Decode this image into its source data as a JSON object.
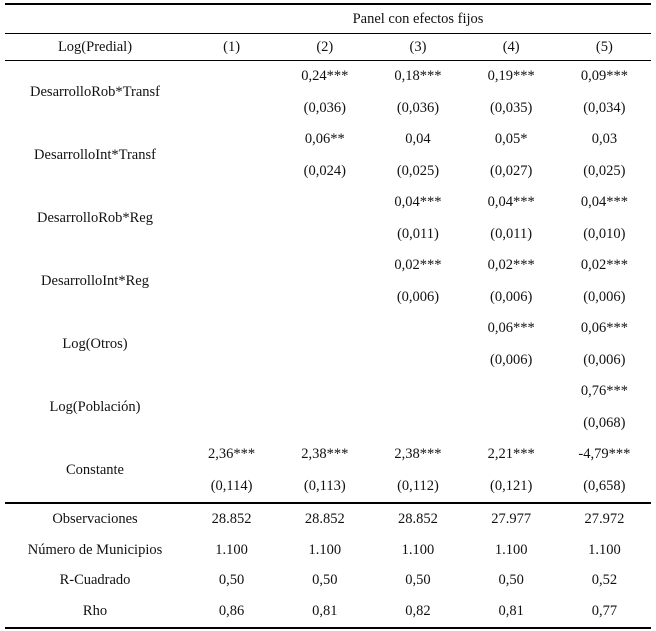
{
  "header": {
    "panel_title": "Panel con efectos fijos",
    "dep_var": "Log(Predial)",
    "columns": [
      "(1)",
      "(2)",
      "(3)",
      "(4)",
      "(5)"
    ]
  },
  "table": {
    "variables": [
      {
        "label": "DesarrolloRob*Transf",
        "coef": [
          "",
          "0,24***",
          "0,18***",
          "0,19***",
          "0,09***"
        ],
        "se": [
          "",
          "(0,036)",
          "(0,036)",
          "(0,035)",
          "(0,034)"
        ]
      },
      {
        "label": "DesarrolloInt*Transf",
        "coef": [
          "",
          "0,06**",
          "0,04",
          "0,05*",
          "0,03"
        ],
        "se": [
          "",
          "(0,024)",
          "(0,025)",
          "(0,027)",
          "(0,025)"
        ]
      },
      {
        "label": "DesarrolloRob*Reg",
        "coef": [
          "",
          "",
          "0,04***",
          "0,04***",
          "0,04***"
        ],
        "se": [
          "",
          "",
          "(0,011)",
          "(0,011)",
          "(0,010)"
        ]
      },
      {
        "label": "DesarrolloInt*Reg",
        "coef": [
          "",
          "",
          "0,02***",
          "0,02***",
          "0,02***"
        ],
        "se": [
          "",
          "",
          "(0,006)",
          "(0,006)",
          "(0,006)"
        ]
      },
      {
        "label": "Log(Otros)",
        "coef": [
          "",
          "",
          "",
          "0,06***",
          "0,06***"
        ],
        "se": [
          "",
          "",
          "",
          "(0,006)",
          "(0,006)"
        ]
      },
      {
        "label": "Log(Población)",
        "coef": [
          "",
          "",
          "",
          "",
          "0,76***"
        ],
        "se": [
          "",
          "",
          "",
          "",
          "(0,068)"
        ]
      },
      {
        "label": "Constante",
        "coef": [
          "2,36***",
          "2,38***",
          "2,38***",
          "2,21***",
          "-4,79***"
        ],
        "se": [
          "(0,114)",
          "(0,113)",
          "(0,112)",
          "(0,121)",
          "(0,658)"
        ]
      }
    ],
    "stats": [
      {
        "label": "Observaciones",
        "values": [
          "28.852",
          "28.852",
          "28.852",
          "27.977",
          "27.972"
        ]
      },
      {
        "label": "Número de Municipios",
        "values": [
          "1.100",
          "1.100",
          "1.100",
          "1.100",
          "1.100"
        ]
      },
      {
        "label": "R-Cuadrado",
        "values": [
          "0,50",
          "0,50",
          "0,50",
          "0,50",
          "0,52"
        ]
      },
      {
        "label": "Rho",
        "values": [
          "0,86",
          "0,81",
          "0,82",
          "0,81",
          "0,77"
        ]
      }
    ]
  },
  "colors": {
    "text": "#111111",
    "rule": "#000000",
    "background": "#ffffff"
  }
}
